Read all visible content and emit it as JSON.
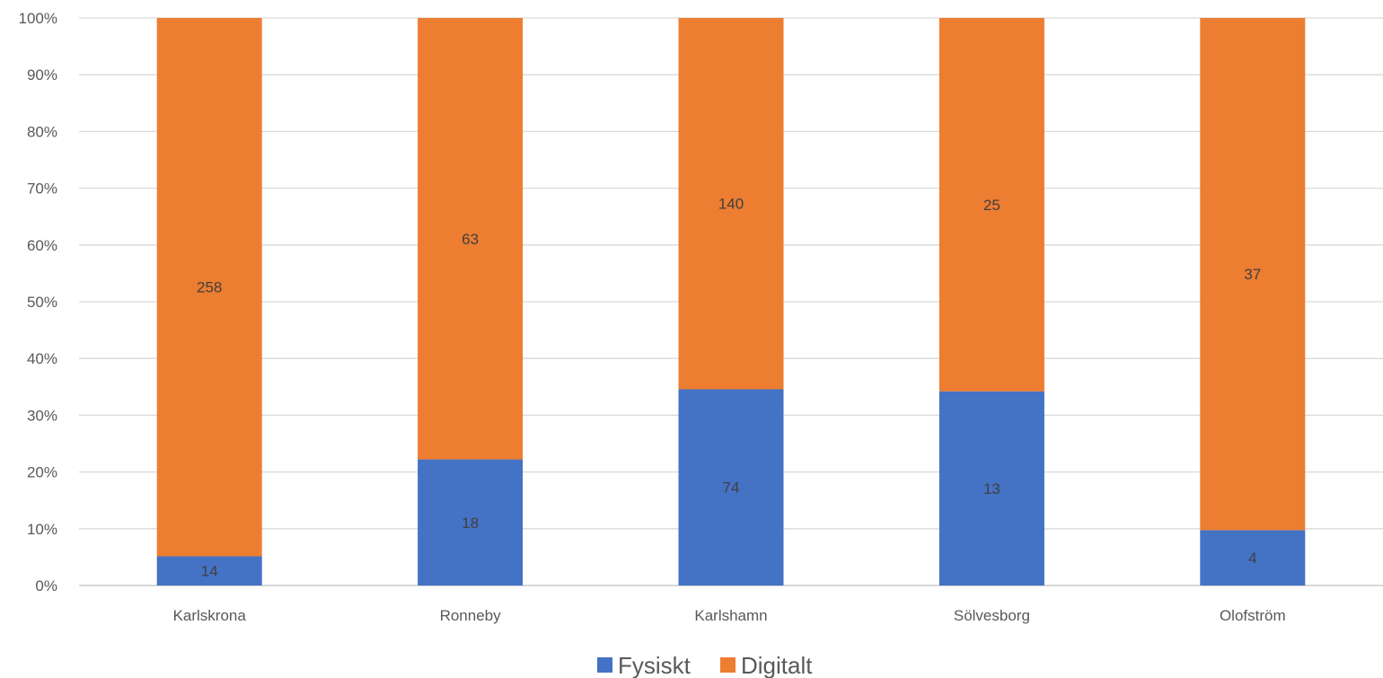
{
  "chart_data": {
    "type": "bar",
    "stacked": "percent",
    "categories": [
      "Karlskrona",
      "Ronneby",
      "Karlshamn",
      "Sölvesborg",
      "Olofström"
    ],
    "series": [
      {
        "name": "Fysiskt",
        "color": "#4472C4",
        "values": [
          14,
          18,
          74,
          13,
          4
        ]
      },
      {
        "name": "Digitalt",
        "color": "#ED7D31",
        "values": [
          258,
          63,
          140,
          25,
          37
        ]
      }
    ],
    "yticks": [
      "0%",
      "10%",
      "20%",
      "30%",
      "40%",
      "50%",
      "60%",
      "70%",
      "80%",
      "90%",
      "100%"
    ],
    "ylim": [
      0,
      100
    ],
    "grid": true,
    "legend": "bottom",
    "title": "",
    "xlabel": "",
    "ylabel": ""
  }
}
